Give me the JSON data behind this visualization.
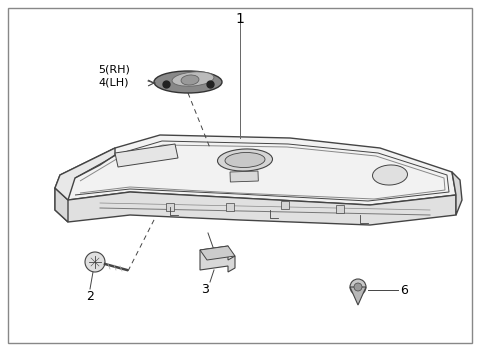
{
  "bg_color": "#ffffff",
  "border_color": "#555555",
  "line_color": "#444444",
  "label_color": "#000000",
  "label_texts": {
    "1": "1",
    "2": "2",
    "3": "3",
    "4_5": "5(RH)\n4(LH)",
    "6": "6"
  },
  "fig_width": 4.8,
  "fig_height": 3.51,
  "dpi": 100
}
